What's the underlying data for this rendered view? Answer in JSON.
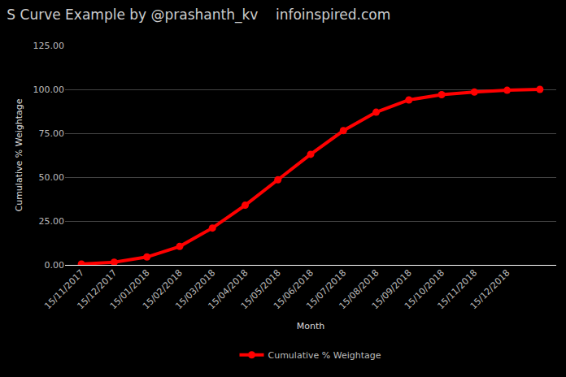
{
  "chart_data": {
    "type": "line",
    "title": "S Curve Example by @prashanth_kv    infoinspired.com",
    "x_label": "Month",
    "y_label": "Cumulative % Weightage",
    "categories": [
      "15/11/2017",
      "15/12/2017",
      "15/01/2018",
      "15/02/2018",
      "15/03/2018",
      "15/04/2018",
      "15/05/2018",
      "15/06/2018",
      "15/07/2018",
      "15/08/2018",
      "15/09/2018",
      "15/10/2018",
      "15/11/2018",
      "15/12/2018",
      null
    ],
    "series": [
      {
        "name": "Cumulative % Weightage",
        "color": "#ff0000",
        "marker": "circle",
        "line_style": "solid",
        "values": [
          0.5,
          1.5,
          4.5,
          10.5,
          21,
          34,
          48.5,
          63,
          76.5,
          87,
          94,
          97,
          98.5,
          99.5,
          100
        ]
      }
    ],
    "ylim": [
      0,
      125
    ],
    "yticks": [
      {
        "value": 0,
        "label": "0.00"
      },
      {
        "value": 25,
        "label": "25.00"
      },
      {
        "value": 50,
        "label": "50.00"
      },
      {
        "value": 75,
        "label": "75.00"
      },
      {
        "value": 100,
        "label": "100.00"
      },
      {
        "value": 125,
        "label": "125.00"
      }
    ],
    "grid": true,
    "legend": "bottom"
  }
}
